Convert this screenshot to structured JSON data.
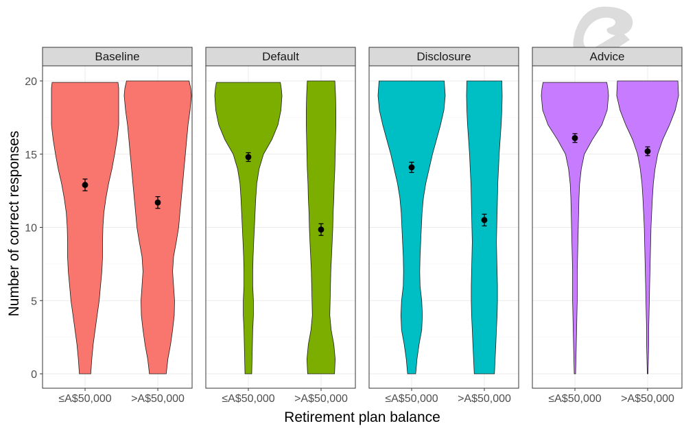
{
  "chart_data": {
    "type": "violin",
    "xlabel": "Retirement plan balance",
    "ylabel": "Number of correct responses",
    "ylim": [
      0,
      20
    ],
    "yticks": [
      0,
      5,
      10,
      15,
      20
    ],
    "categories": [
      "≤A$50,000",
      ">A$50,000"
    ],
    "grid": true,
    "facets": [
      {
        "name": "Baseline",
        "color": "#F8766D",
        "groups": [
          {
            "category": "≤A$50,000",
            "mean": 12.9,
            "ci": [
              12.5,
              13.3
            ],
            "density": [
              [
                0,
                0.17
              ],
              [
                1,
                0.2
              ],
              [
                2,
                0.24
              ],
              [
                3,
                0.3
              ],
              [
                4,
                0.36
              ],
              [
                5,
                0.42
              ],
              [
                6,
                0.46
              ],
              [
                7,
                0.5
              ],
              [
                8,
                0.52
              ],
              [
                9,
                0.52
              ],
              [
                10,
                0.53
              ],
              [
                11,
                0.56
              ],
              [
                12,
                0.62
              ],
              [
                13,
                0.7
              ],
              [
                14,
                0.8
              ],
              [
                15,
                0.88
              ],
              [
                16,
                0.95
              ],
              [
                17,
                1.0
              ],
              [
                18,
                1.0
              ],
              [
                19,
                1.0
              ],
              [
                19.5,
                1.0
              ],
              [
                19.9,
                0.98
              ]
            ]
          },
          {
            "category": ">A$50,000",
            "mean": 11.7,
            "ci": [
              11.3,
              12.1
            ],
            "density": [
              [
                0,
                0.25
              ],
              [
                1,
                0.3
              ],
              [
                2,
                0.38
              ],
              [
                3,
                0.44
              ],
              [
                4,
                0.49
              ],
              [
                5,
                0.5
              ],
              [
                6,
                0.47
              ],
              [
                7,
                0.44
              ],
              [
                8,
                0.47
              ],
              [
                9,
                0.55
              ],
              [
                10,
                0.62
              ],
              [
                11,
                0.66
              ],
              [
                12,
                0.7
              ],
              [
                13,
                0.74
              ],
              [
                14,
                0.78
              ],
              [
                15,
                0.82
              ],
              [
                16,
                0.86
              ],
              [
                17,
                0.9
              ],
              [
                18,
                0.96
              ],
              [
                19,
                1.0
              ],
              [
                19.5,
                0.98
              ],
              [
                20,
                0.93
              ]
            ]
          }
        ]
      },
      {
        "name": "Default",
        "color": "#7CAE00",
        "groups": [
          {
            "category": "≤A$50,000",
            "mean": 14.8,
            "ci": [
              14.5,
              15.1
            ],
            "density": [
              [
                0,
                0.1
              ],
              [
                1,
                0.11
              ],
              [
                2,
                0.12
              ],
              [
                3,
                0.13
              ],
              [
                4,
                0.15
              ],
              [
                5,
                0.15
              ],
              [
                6,
                0.13
              ],
              [
                7,
                0.13
              ],
              [
                8,
                0.14
              ],
              [
                9,
                0.16
              ],
              [
                10,
                0.18
              ],
              [
                11,
                0.2
              ],
              [
                12,
                0.22
              ],
              [
                13,
                0.25
              ],
              [
                14,
                0.32
              ],
              [
                15,
                0.45
              ],
              [
                16,
                0.7
              ],
              [
                17,
                0.88
              ],
              [
                18,
                0.97
              ],
              [
                19,
                1.0
              ],
              [
                19.5,
                0.98
              ],
              [
                19.9,
                0.95
              ]
            ]
          },
          {
            "category": ">A$50,000",
            "mean": 9.85,
            "ci": [
              9.45,
              10.25
            ],
            "density": [
              [
                0,
                0.4
              ],
              [
                1,
                0.42
              ],
              [
                2,
                0.38
              ],
              [
                3,
                0.3
              ],
              [
                4,
                0.26
              ],
              [
                5,
                0.27
              ],
              [
                6,
                0.28
              ],
              [
                7,
                0.29
              ],
              [
                8,
                0.31
              ],
              [
                9,
                0.33
              ],
              [
                10,
                0.35
              ],
              [
                11,
                0.36
              ],
              [
                12,
                0.38
              ],
              [
                13,
                0.39
              ],
              [
                14,
                0.41
              ],
              [
                15,
                0.42
              ],
              [
                16,
                0.43
              ],
              [
                17,
                0.44
              ],
              [
                18,
                0.44
              ],
              [
                19,
                0.43
              ],
              [
                20,
                0.41
              ]
            ]
          }
        ]
      },
      {
        "name": "Disclosure",
        "color": "#00BFC4",
        "groups": [
          {
            "category": "≤A$50,000",
            "mean": 14.1,
            "ci": [
              13.75,
              14.45
            ],
            "density": [
              [
                0,
                0.12
              ],
              [
                1,
                0.16
              ],
              [
                2,
                0.22
              ],
              [
                3,
                0.3
              ],
              [
                4,
                0.32
              ],
              [
                5,
                0.3
              ],
              [
                6,
                0.25
              ],
              [
                7,
                0.24
              ],
              [
                8,
                0.25
              ],
              [
                9,
                0.27
              ],
              [
                10,
                0.29
              ],
              [
                11,
                0.31
              ],
              [
                12,
                0.35
              ],
              [
                13,
                0.42
              ],
              [
                14,
                0.52
              ],
              [
                15,
                0.62
              ],
              [
                16,
                0.74
              ],
              [
                17,
                0.86
              ],
              [
                18,
                0.96
              ],
              [
                19,
                1.0
              ],
              [
                20,
                0.97
              ]
            ]
          },
          {
            "category": ">A$50,000",
            "mean": 10.5,
            "ci": [
              10.1,
              10.9
            ],
            "density": [
              [
                0,
                0.3
              ],
              [
                1,
                0.32
              ],
              [
                2,
                0.34
              ],
              [
                3,
                0.36
              ],
              [
                4,
                0.38
              ],
              [
                5,
                0.39
              ],
              [
                6,
                0.39
              ],
              [
                7,
                0.38
              ],
              [
                8,
                0.37
              ],
              [
                9,
                0.36
              ],
              [
                10,
                0.37
              ],
              [
                11,
                0.38
              ],
              [
                12,
                0.39
              ],
              [
                13,
                0.4
              ],
              [
                14,
                0.42
              ],
              [
                15,
                0.44
              ],
              [
                16,
                0.47
              ],
              [
                17,
                0.5
              ],
              [
                18,
                0.52
              ],
              [
                19,
                0.53
              ],
              [
                20,
                0.52
              ]
            ]
          }
        ]
      },
      {
        "name": "Advice",
        "color": "#C77CFF",
        "groups": [
          {
            "category": "≤A$50,000",
            "mean": 16.1,
            "ci": [
              15.8,
              16.4
            ],
            "density": [
              [
                0,
                0.02
              ],
              [
                1,
                0.03
              ],
              [
                2,
                0.04
              ],
              [
                3,
                0.05
              ],
              [
                4,
                0.06
              ],
              [
                5,
                0.07
              ],
              [
                6,
                0.07
              ],
              [
                7,
                0.07
              ],
              [
                8,
                0.08
              ],
              [
                9,
                0.09
              ],
              [
                10,
                0.1
              ],
              [
                11,
                0.11
              ],
              [
                12,
                0.12
              ],
              [
                13,
                0.14
              ],
              [
                14,
                0.19
              ],
              [
                15,
                0.28
              ],
              [
                16,
                0.52
              ],
              [
                17,
                0.8
              ],
              [
                18,
                0.96
              ],
              [
                19,
                1.0
              ],
              [
                19.5,
                0.98
              ],
              [
                19.9,
                0.95
              ]
            ]
          },
          {
            "category": ">A$50,000",
            "mean": 15.2,
            "ci": [
              14.9,
              15.5
            ],
            "density": [
              [
                0,
                0.01
              ],
              [
                1,
                0.02
              ],
              [
                2,
                0.03
              ],
              [
                3,
                0.03
              ],
              [
                4,
                0.04
              ],
              [
                5,
                0.05
              ],
              [
                6,
                0.06
              ],
              [
                7,
                0.07
              ],
              [
                8,
                0.08
              ],
              [
                9,
                0.09
              ],
              [
                10,
                0.1
              ],
              [
                11,
                0.12
              ],
              [
                12,
                0.14
              ],
              [
                13,
                0.17
              ],
              [
                14,
                0.22
              ],
              [
                15,
                0.3
              ],
              [
                16,
                0.45
              ],
              [
                17,
                0.65
              ],
              [
                18,
                0.82
              ],
              [
                19,
                0.92
              ],
              [
                20,
                0.9
              ]
            ]
          }
        ]
      }
    ]
  },
  "watermark": {
    "icon": "ampersand-logo-icon",
    "color": "#dcdcdc"
  }
}
